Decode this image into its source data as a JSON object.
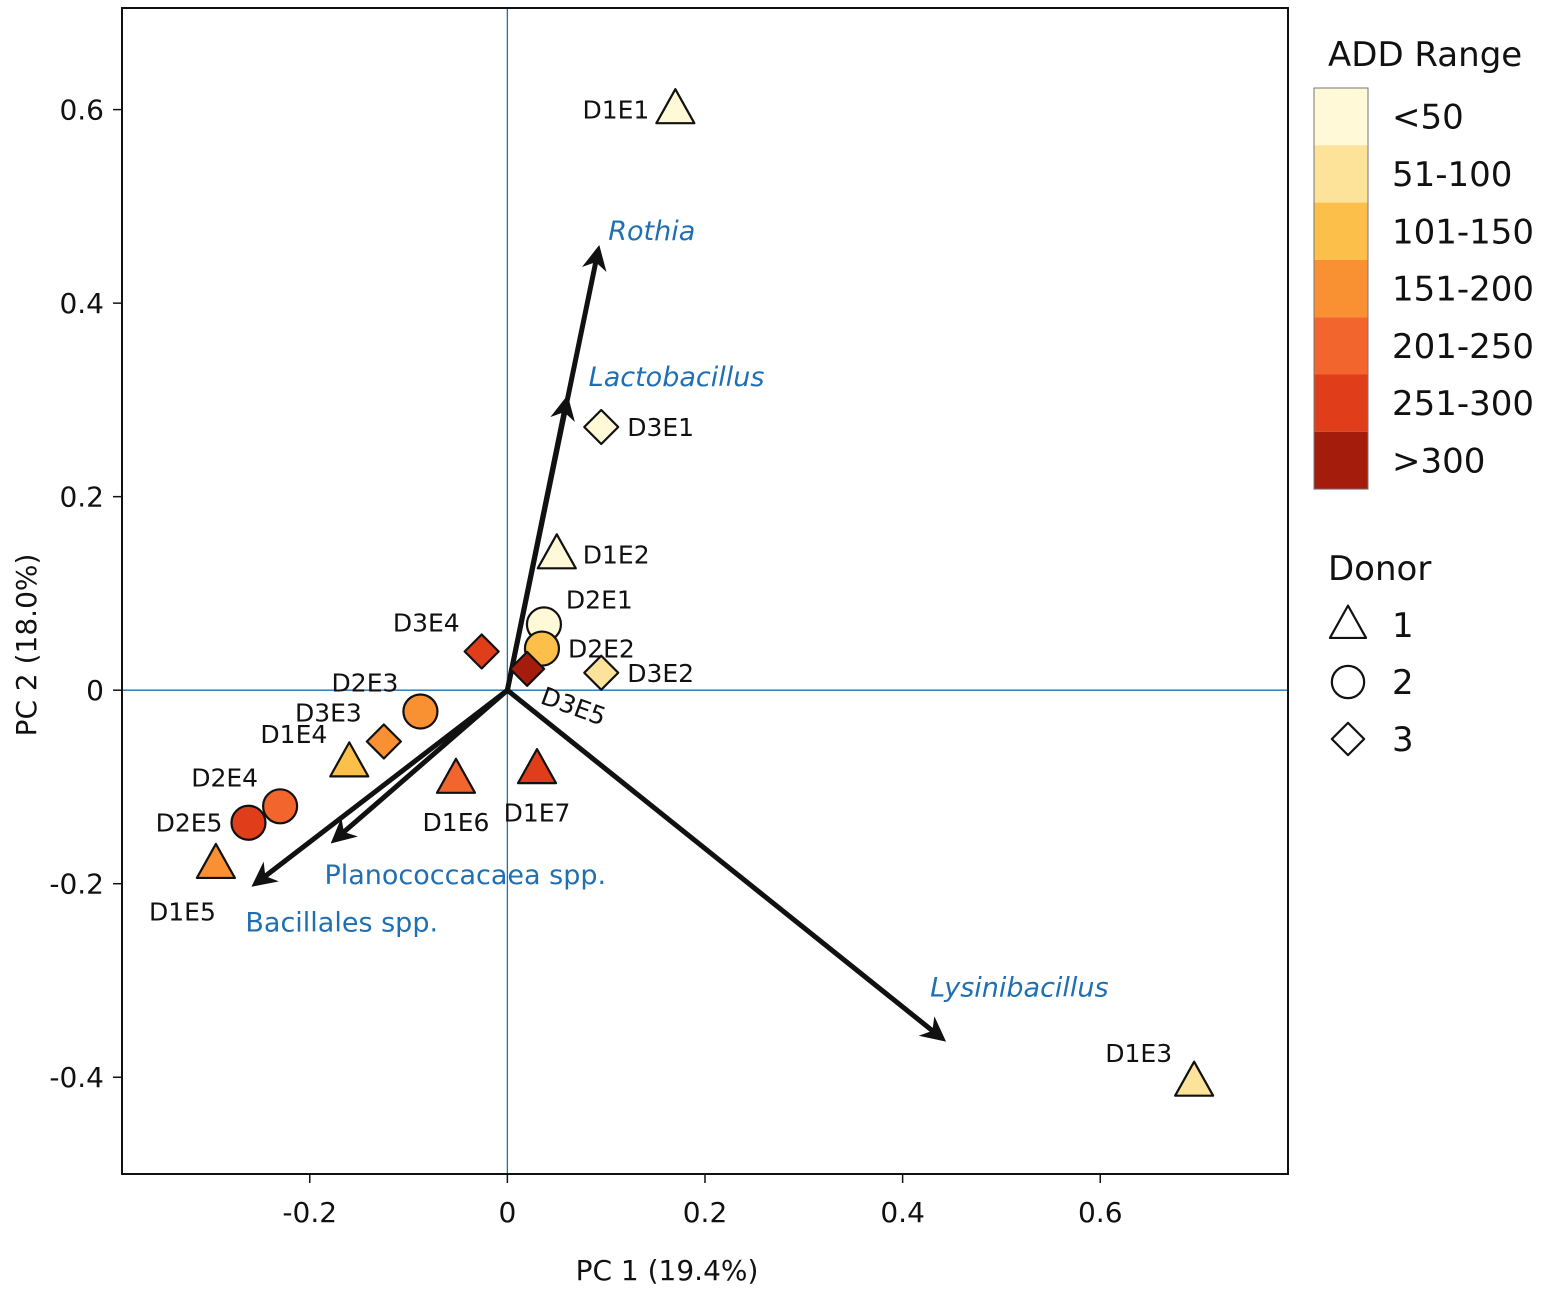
{
  "chart_data": {
    "type": "scatter",
    "subtype": "pca-biplot",
    "xlabel": "PC 1 (19.4%)",
    "ylabel": "PC 2 (18.0%)",
    "xlim": [
      -0.39,
      0.79
    ],
    "ylim": [
      -0.5,
      0.705
    ],
    "xticks": [
      {
        "value": -0.2,
        "label": "-0.2"
      },
      {
        "value": 0,
        "label": "0"
      },
      {
        "value": 0.2,
        "label": "0.2"
      },
      {
        "value": 0.4,
        "label": "0.4"
      },
      {
        "value": 0.6,
        "label": "0.6"
      }
    ],
    "yticks": [
      {
        "value": 0.6,
        "label": "0.6"
      },
      {
        "value": 0.4,
        "label": "0.4"
      },
      {
        "value": 0.2,
        "label": "0.2"
      },
      {
        "value": 0,
        "label": "0"
      },
      {
        "value": -0.2,
        "label": "-0.2"
      },
      {
        "value": -0.4,
        "label": "-0.4"
      }
    ],
    "reference_lines": {
      "x": 0,
      "y": 0,
      "color": "#1f6fb3"
    },
    "add_range_legend": {
      "title": "ADD Range",
      "items": [
        {
          "label": "<50",
          "color": "#fff9d8"
        },
        {
          "label": "51-100",
          "color": "#fde29a"
        },
        {
          "label": "101-150",
          "color": "#fcc04a"
        },
        {
          "label": "151-200",
          "color": "#f99132"
        },
        {
          "label": "201-250",
          "color": "#f2652d"
        },
        {
          "label": "251-300",
          "color": "#e03d1b"
        },
        {
          "label": ">300",
          "color": "#a31c0c"
        }
      ]
    },
    "donor_legend": {
      "title": "Donor",
      "items": [
        {
          "label": "1",
          "shape": "triangle"
        },
        {
          "label": "2",
          "shape": "circle"
        },
        {
          "label": "3",
          "shape": "diamond"
        }
      ]
    },
    "points": [
      {
        "label": "D1E1",
        "x": 0.17,
        "y": 0.6,
        "donor": 1,
        "add": "<50",
        "label_pos": "left"
      },
      {
        "label": "D1E2",
        "x": 0.05,
        "y": 0.14,
        "donor": 1,
        "add": "<50",
        "label_pos": "right"
      },
      {
        "label": "D1E3",
        "x": 0.695,
        "y": -0.405,
        "donor": 1,
        "add": "51-100",
        "label_pos": "upper-left"
      },
      {
        "label": "D1E4",
        "x": -0.16,
        "y": -0.075,
        "donor": 1,
        "add": "101-150",
        "label_pos": "upper-left"
      },
      {
        "label": "D1E5",
        "x": -0.295,
        "y": -0.18,
        "donor": 1,
        "add": "151-200",
        "label_pos": "below-left"
      },
      {
        "label": "D1E6",
        "x": -0.052,
        "y": -0.092,
        "donor": 1,
        "add": "201-250",
        "label_pos": "below"
      },
      {
        "label": "D1E7",
        "x": 0.03,
        "y": -0.082,
        "donor": 1,
        "add": "251-300",
        "label_pos": "below"
      },
      {
        "label": "D2E1",
        "x": 0.037,
        "y": 0.068,
        "donor": 2,
        "add": "<50",
        "label_pos": "upper-right"
      },
      {
        "label": "D2E2",
        "x": 0.035,
        "y": 0.043,
        "donor": 2,
        "add": "101-150",
        "label_pos": "right"
      },
      {
        "label": "D2E3",
        "x": -0.088,
        "y": -0.022,
        "donor": 2,
        "add": "151-200",
        "label_pos": "upper-left"
      },
      {
        "label": "D2E4",
        "x": -0.23,
        "y": -0.12,
        "donor": 2,
        "add": "201-250",
        "label_pos": "upper-left"
      },
      {
        "label": "D2E5",
        "x": -0.262,
        "y": -0.137,
        "donor": 2,
        "add": "251-300",
        "label_pos": "left"
      },
      {
        "label": "D3E1",
        "x": 0.095,
        "y": 0.272,
        "donor": 3,
        "add": "<50",
        "label_pos": "right"
      },
      {
        "label": "D3E2",
        "x": 0.095,
        "y": 0.018,
        "donor": 3,
        "add": "51-100",
        "label_pos": "right"
      },
      {
        "label": "D3E3",
        "x": -0.125,
        "y": -0.053,
        "donor": 3,
        "add": "151-200",
        "label_pos": "upper-left"
      },
      {
        "label": "D3E4",
        "x": -0.026,
        "y": 0.04,
        "donor": 3,
        "add": "251-300",
        "label_pos": "upper-left"
      },
      {
        "label": "D3E5",
        "x": 0.02,
        "y": 0.022,
        "donor": 3,
        "add": ">300",
        "label_pos": "lower-right-rotated"
      }
    ],
    "loadings": [
      {
        "label": "Rothia",
        "x": 0.092,
        "y": 0.455,
        "italic": true
      },
      {
        "label": "Lactobacillus",
        "x": 0.06,
        "y": 0.3,
        "italic": true
      },
      {
        "label": "Lysinibacillus",
        "x": 0.44,
        "y": -0.36,
        "italic": true
      },
      {
        "label": "Planococcacaea spp.",
        "x": -0.175,
        "y": -0.155,
        "italic": false
      },
      {
        "label": "Bacillales spp.",
        "x": -0.255,
        "y": -0.2,
        "italic": false
      }
    ]
  }
}
